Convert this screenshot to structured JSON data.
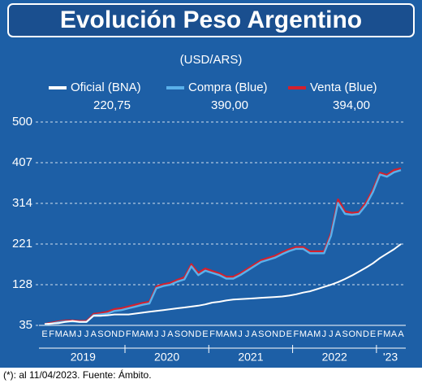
{
  "chart_data": {
    "type": "line",
    "title": "Evolución Peso Argentino",
    "subtitle": "(USD/ARS)",
    "footnote": "(*): al 11/04/2023. Fuente: Ámbito.",
    "x": [
      "2019-01",
      "2019-02",
      "2019-03",
      "2019-04",
      "2019-05",
      "2019-06",
      "2019-07",
      "2019-08",
      "2019-09",
      "2019-10",
      "2019-11",
      "2019-12",
      "2020-01",
      "2020-02",
      "2020-03",
      "2020-04",
      "2020-05",
      "2020-06",
      "2020-07",
      "2020-08",
      "2020-09",
      "2020-10",
      "2020-11",
      "2020-12",
      "2021-01",
      "2021-02",
      "2021-03",
      "2021-04",
      "2021-05",
      "2021-06",
      "2021-07",
      "2021-08",
      "2021-09",
      "2021-10",
      "2021-11",
      "2021-12",
      "2022-01",
      "2022-02",
      "2022-03",
      "2022-04",
      "2022-05",
      "2022-06",
      "2022-07",
      "2022-08",
      "2022-09",
      "2022-10",
      "2022-11",
      "2022-12",
      "2023-01",
      "2023-02",
      "2023-03",
      "2023-04"
    ],
    "x_tick_labels": [
      "E",
      "F",
      "M",
      "A",
      "M",
      "J",
      "J",
      "A",
      "S",
      "O",
      "N",
      "D",
      "F",
      "M",
      "A",
      "M",
      "J",
      "J",
      "A",
      "S",
      "O",
      "N",
      "D",
      "E",
      "F",
      "M",
      "A",
      "M",
      "J",
      "J",
      "A",
      "S",
      "O",
      "N",
      "D",
      "E",
      "F",
      "M",
      "A",
      "M",
      "J",
      "J",
      "A",
      "S",
      "O",
      "N",
      "D",
      "E",
      "F",
      "M",
      "A",
      "A"
    ],
    "year_labels": [
      "2019",
      "2020",
      "2021",
      "2022",
      "'23"
    ],
    "series": [
      {
        "name": "Oficial (BNA)",
        "latest": "220,75",
        "color": "#ffffff",
        "values": [
          38,
          39,
          40,
          43,
          45,
          43,
          43,
          57,
          57,
          58,
          60,
          60,
          60,
          62,
          64,
          66,
          68,
          70,
          72,
          74,
          76,
          78,
          80,
          83,
          87,
          89,
          92,
          94,
          95,
          96,
          97,
          98,
          99,
          100,
          101,
          103,
          106,
          110,
          113,
          118,
          123,
          128,
          134,
          141,
          149,
          158,
          167,
          177,
          189,
          199,
          209,
          220.75
        ]
      },
      {
        "name": "Compra (Blue)",
        "latest": "390,00",
        "color": "#5ab0ea",
        "values": [
          37,
          39,
          42,
          44,
          44,
          43,
          43,
          58,
          60,
          62,
          68,
          70,
          74,
          78,
          82,
          85,
          120,
          125,
          128,
          135,
          140,
          170,
          150,
          160,
          155,
          150,
          142,
          142,
          150,
          160,
          170,
          180,
          185,
          190,
          198,
          205,
          210,
          210,
          200,
          200,
          200,
          240,
          315,
          290,
          288,
          290,
          310,
          340,
          380,
          375,
          385,
          390
        ]
      },
      {
        "name": "Venta (Blue)",
        "latest": "394,00",
        "color": "#d4202c",
        "values": [
          38,
          41,
          44,
          46,
          46,
          45,
          45,
          61,
          63,
          66,
          72,
          74,
          78,
          82,
          86,
          89,
          124,
          129,
          132,
          139,
          145,
          175,
          155,
          165,
          159,
          154,
          146,
          146,
          154,
          164,
          174,
          184,
          189,
          194,
          202,
          209,
          214,
          214,
          204,
          204,
          204,
          246,
          323,
          296,
          292,
          294,
          316,
          346,
          384,
          379,
          390,
          394
        ]
      }
    ],
    "ylim": [
      35,
      500
    ],
    "yticks": [
      35,
      128,
      221,
      314,
      407,
      500
    ],
    "grid": true
  }
}
